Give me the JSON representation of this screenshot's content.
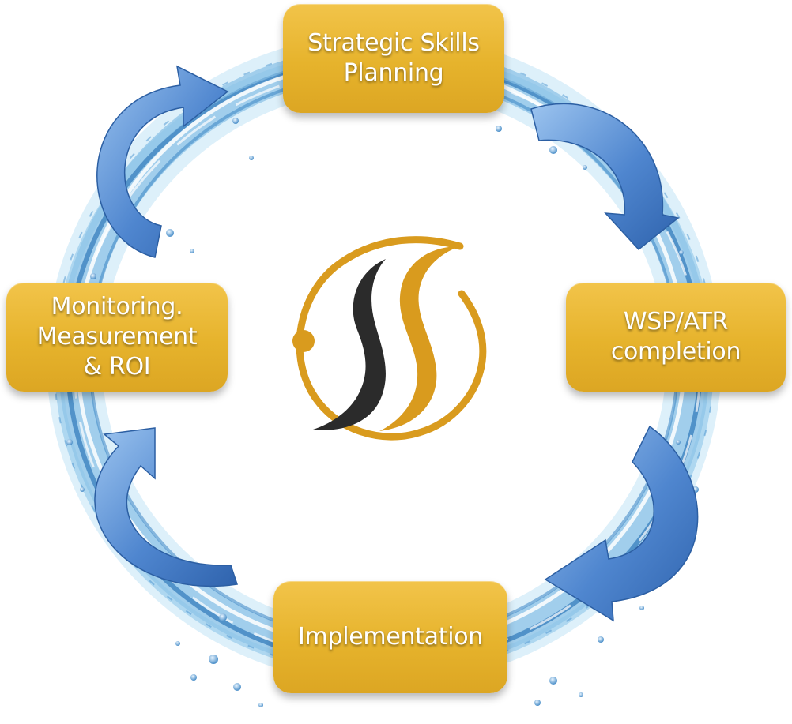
{
  "diagram": {
    "steps": [
      {
        "label": "Strategic Skills\nPlanning"
      },
      {
        "label": "WSP/ATR\ncompletion"
      },
      {
        "label": "Implementation"
      },
      {
        "label": "Monitoring.\nMeasurement\n& ROI"
      }
    ],
    "colors": {
      "box_fill": "#e6b32c",
      "box_text": "#ffffff",
      "arrow_fill": "#4f86cf",
      "water": "#7fb8e3",
      "logo_gold": "#d99b1e",
      "logo_dark": "#2b2b2b"
    },
    "icons": [
      "water-ring-image",
      "curved-arrow-icon",
      "logo-mark"
    ]
  }
}
